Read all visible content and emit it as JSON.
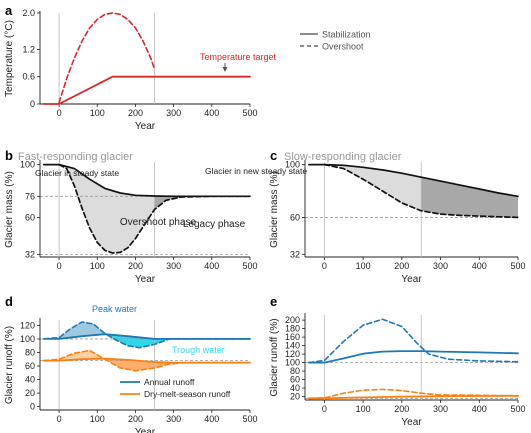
{
  "colors": {
    "red": "#d62728",
    "blue": "#1f77b4",
    "orange": "#ff7f0e",
    "cyan": "#33d6e8",
    "grey_fill": "#dcdcdc",
    "dark_fill": "#a8a8a8",
    "gridline": "#b8b8b8",
    "dashed_ref": "#999999"
  },
  "legend_top": {
    "stabilization": "Stabilization",
    "overshoot": "Overshoot"
  },
  "legend_bottom": {
    "annual": "Annual runoff",
    "dry": "Dry-melt-season runoff"
  },
  "chart_data": [
    {
      "panel": "a",
      "type": "line",
      "xlabel": "Year",
      "ylabel": "Temperature (°C)",
      "xlim": [
        -50,
        500
      ],
      "ylim": [
        0,
        2.0
      ],
      "xticks": [
        "0",
        "100",
        "200",
        "300",
        "400",
        "500"
      ],
      "yticks": [
        "0",
        "0.6",
        "1.2",
        "2.0"
      ],
      "series": [
        {
          "name": "Stabilization",
          "style": "solid",
          "x": [
            -40,
            0,
            140,
            500
          ],
          "y": [
            0,
            0,
            0.6,
            0.6
          ]
        },
        {
          "name": "Overshoot",
          "style": "dashed",
          "x": [
            0,
            20,
            40,
            60,
            80,
            100,
            120,
            140,
            160,
            180,
            200,
            220,
            240,
            250
          ],
          "y": [
            0.03,
            0.56,
            1.01,
            1.38,
            1.67,
            1.86,
            1.97,
            2.0,
            1.97,
            1.86,
            1.67,
            1.38,
            1.01,
            0.77
          ]
        }
      ],
      "annotations": [
        "Temperature target"
      ]
    },
    {
      "panel": "b",
      "type": "line",
      "title": "Fast-responding glacier",
      "xlabel": "Year",
      "ylabel": "Glacier mass (%)",
      "xlim": [
        -50,
        500
      ],
      "ylim": [
        30,
        102
      ],
      "xticks": [
        "0",
        "100",
        "200",
        "300",
        "400",
        "500"
      ],
      "yticks": [
        "32",
        "60",
        "76",
        "100"
      ],
      "series": [
        {
          "name": "Stabilization",
          "style": "solid",
          "x": [
            -40,
            0,
            40,
            80,
            120,
            160,
            200,
            250,
            300,
            400,
            500
          ],
          "y": [
            100,
            100,
            97,
            89,
            82,
            78.5,
            76.8,
            76.2,
            76,
            76,
            76
          ]
        },
        {
          "name": "Overshoot",
          "style": "dashed",
          "x": [
            0,
            20,
            40,
            60,
            80,
            100,
            120,
            140,
            160,
            180,
            200,
            220,
            250,
            280,
            320,
            400,
            500
          ],
          "y": [
            100,
            97,
            84,
            67,
            52,
            41,
            35,
            33,
            33.5,
            37,
            44,
            53,
            66,
            73,
            75.5,
            76,
            76
          ]
        }
      ],
      "annotations": [
        "Glacier in steady state",
        "Glacier in new steady state",
        "Overshoot phase",
        "Legacy phase"
      ]
    },
    {
      "panel": "c",
      "type": "line",
      "title": "Slow-responding glacier",
      "xlabel": "Year",
      "ylabel": "Glacier mass (%)",
      "xlim": [
        -50,
        500
      ],
      "ylim": [
        30,
        102
      ],
      "xticks": [
        "0",
        "100",
        "200",
        "300",
        "400",
        "500"
      ],
      "yticks": [
        "32",
        "60",
        "100"
      ],
      "series": [
        {
          "name": "Stabilization",
          "style": "solid",
          "x": [
            -40,
            0,
            50,
            100,
            150,
            200,
            250,
            300,
            350,
            400,
            450,
            500
          ],
          "y": [
            100,
            100,
            99.5,
            98,
            96,
            93.5,
            90.5,
            87.5,
            84.5,
            81.5,
            78.5,
            76
          ]
        },
        {
          "name": "Overshoot",
          "style": "dashed",
          "x": [
            0,
            50,
            100,
            150,
            200,
            250,
            300,
            350,
            400,
            450,
            500
          ],
          "y": [
            100,
            97,
            89,
            80,
            71,
            65,
            62.5,
            61.5,
            61,
            60.5,
            60
          ]
        }
      ]
    },
    {
      "panel": "d",
      "type": "line",
      "xlabel": "Year",
      "ylabel": "Glacier runoff (%)",
      "xlim": [
        -50,
        500
      ],
      "ylim": [
        -5,
        128
      ],
      "xticks": [
        "0",
        "100",
        "200",
        "300",
        "400",
        "500"
      ],
      "yticks": [
        "0",
        "20",
        "40",
        "60",
        "80",
        "100",
        "120"
      ],
      "series": [
        {
          "name": "Annual runoff (stabilization)",
          "style": "solid",
          "x": [
            -40,
            0,
            60,
            120,
            180,
            250,
            320,
            500
          ],
          "y": [
            100,
            100,
            104,
            107,
            104,
            100,
            100,
            100
          ]
        },
        {
          "name": "Annual runoff (overshoot)",
          "style": "dashed",
          "x": [
            -40,
            0,
            30,
            60,
            90,
            120,
            150,
            180,
            210,
            250,
            290,
            330,
            500
          ],
          "y": [
            100,
            102,
            115,
            125,
            122,
            108,
            98,
            90,
            87,
            92,
            100,
            100,
            100
          ]
        },
        {
          "name": "Dry-melt-season runoff (stabilization)",
          "style": "solid",
          "x": [
            -40,
            0,
            60,
            120,
            180,
            250,
            300,
            500
          ],
          "y": [
            68,
            68,
            70,
            71,
            69,
            66,
            65,
            65
          ]
        },
        {
          "name": "Dry-melt-season runoff (overshoot)",
          "style": "dashed",
          "x": [
            -40,
            0,
            40,
            80,
            120,
            160,
            200,
            250,
            290,
            330,
            500
          ],
          "y": [
            68,
            70,
            79,
            83,
            70,
            57,
            53,
            57,
            63,
            65,
            65
          ]
        }
      ],
      "annotations": [
        "Peak water",
        "Trough water"
      ]
    },
    {
      "panel": "e",
      "type": "line",
      "xlabel": "Year",
      "ylabel": "Glacier runoff (%)",
      "xlim": [
        -50,
        500
      ],
      "ylim": [
        12,
        212
      ],
      "xticks": [
        "0",
        "100",
        "200",
        "300",
        "400",
        "500"
      ],
      "yticks": [
        "20",
        "40",
        "60",
        "80",
        "100",
        "120",
        "140",
        "160",
        "180",
        "200"
      ],
      "series": [
        {
          "name": "Annual runoff (stabilization)",
          "style": "solid",
          "x": [
            -40,
            0,
            50,
            100,
            150,
            200,
            250,
            300,
            400,
            500
          ],
          "y": [
            100,
            100,
            110,
            121,
            126,
            127,
            127,
            126,
            124,
            122
          ]
        },
        {
          "name": "Annual runoff (overshoot)",
          "style": "dashed",
          "x": [
            -40,
            0,
            50,
            100,
            150,
            200,
            240,
            270,
            320,
            400,
            500
          ],
          "y": [
            100,
            105,
            150,
            188,
            202,
            185,
            145,
            120,
            108,
            104,
            102
          ]
        },
        {
          "name": "Dry-melt-season runoff (stabilization)",
          "style": "solid",
          "x": [
            -40,
            0,
            100,
            200,
            300,
            500
          ],
          "y": [
            16,
            16,
            18,
            20,
            21,
            22
          ]
        },
        {
          "name": "Dry-melt-season runoff (overshoot)",
          "style": "dashed",
          "x": [
            -40,
            0,
            50,
            100,
            150,
            200,
            250,
            300,
            400,
            500
          ],
          "y": [
            16,
            17,
            28,
            35,
            37,
            34,
            28,
            24,
            23,
            22
          ]
        }
      ]
    }
  ]
}
